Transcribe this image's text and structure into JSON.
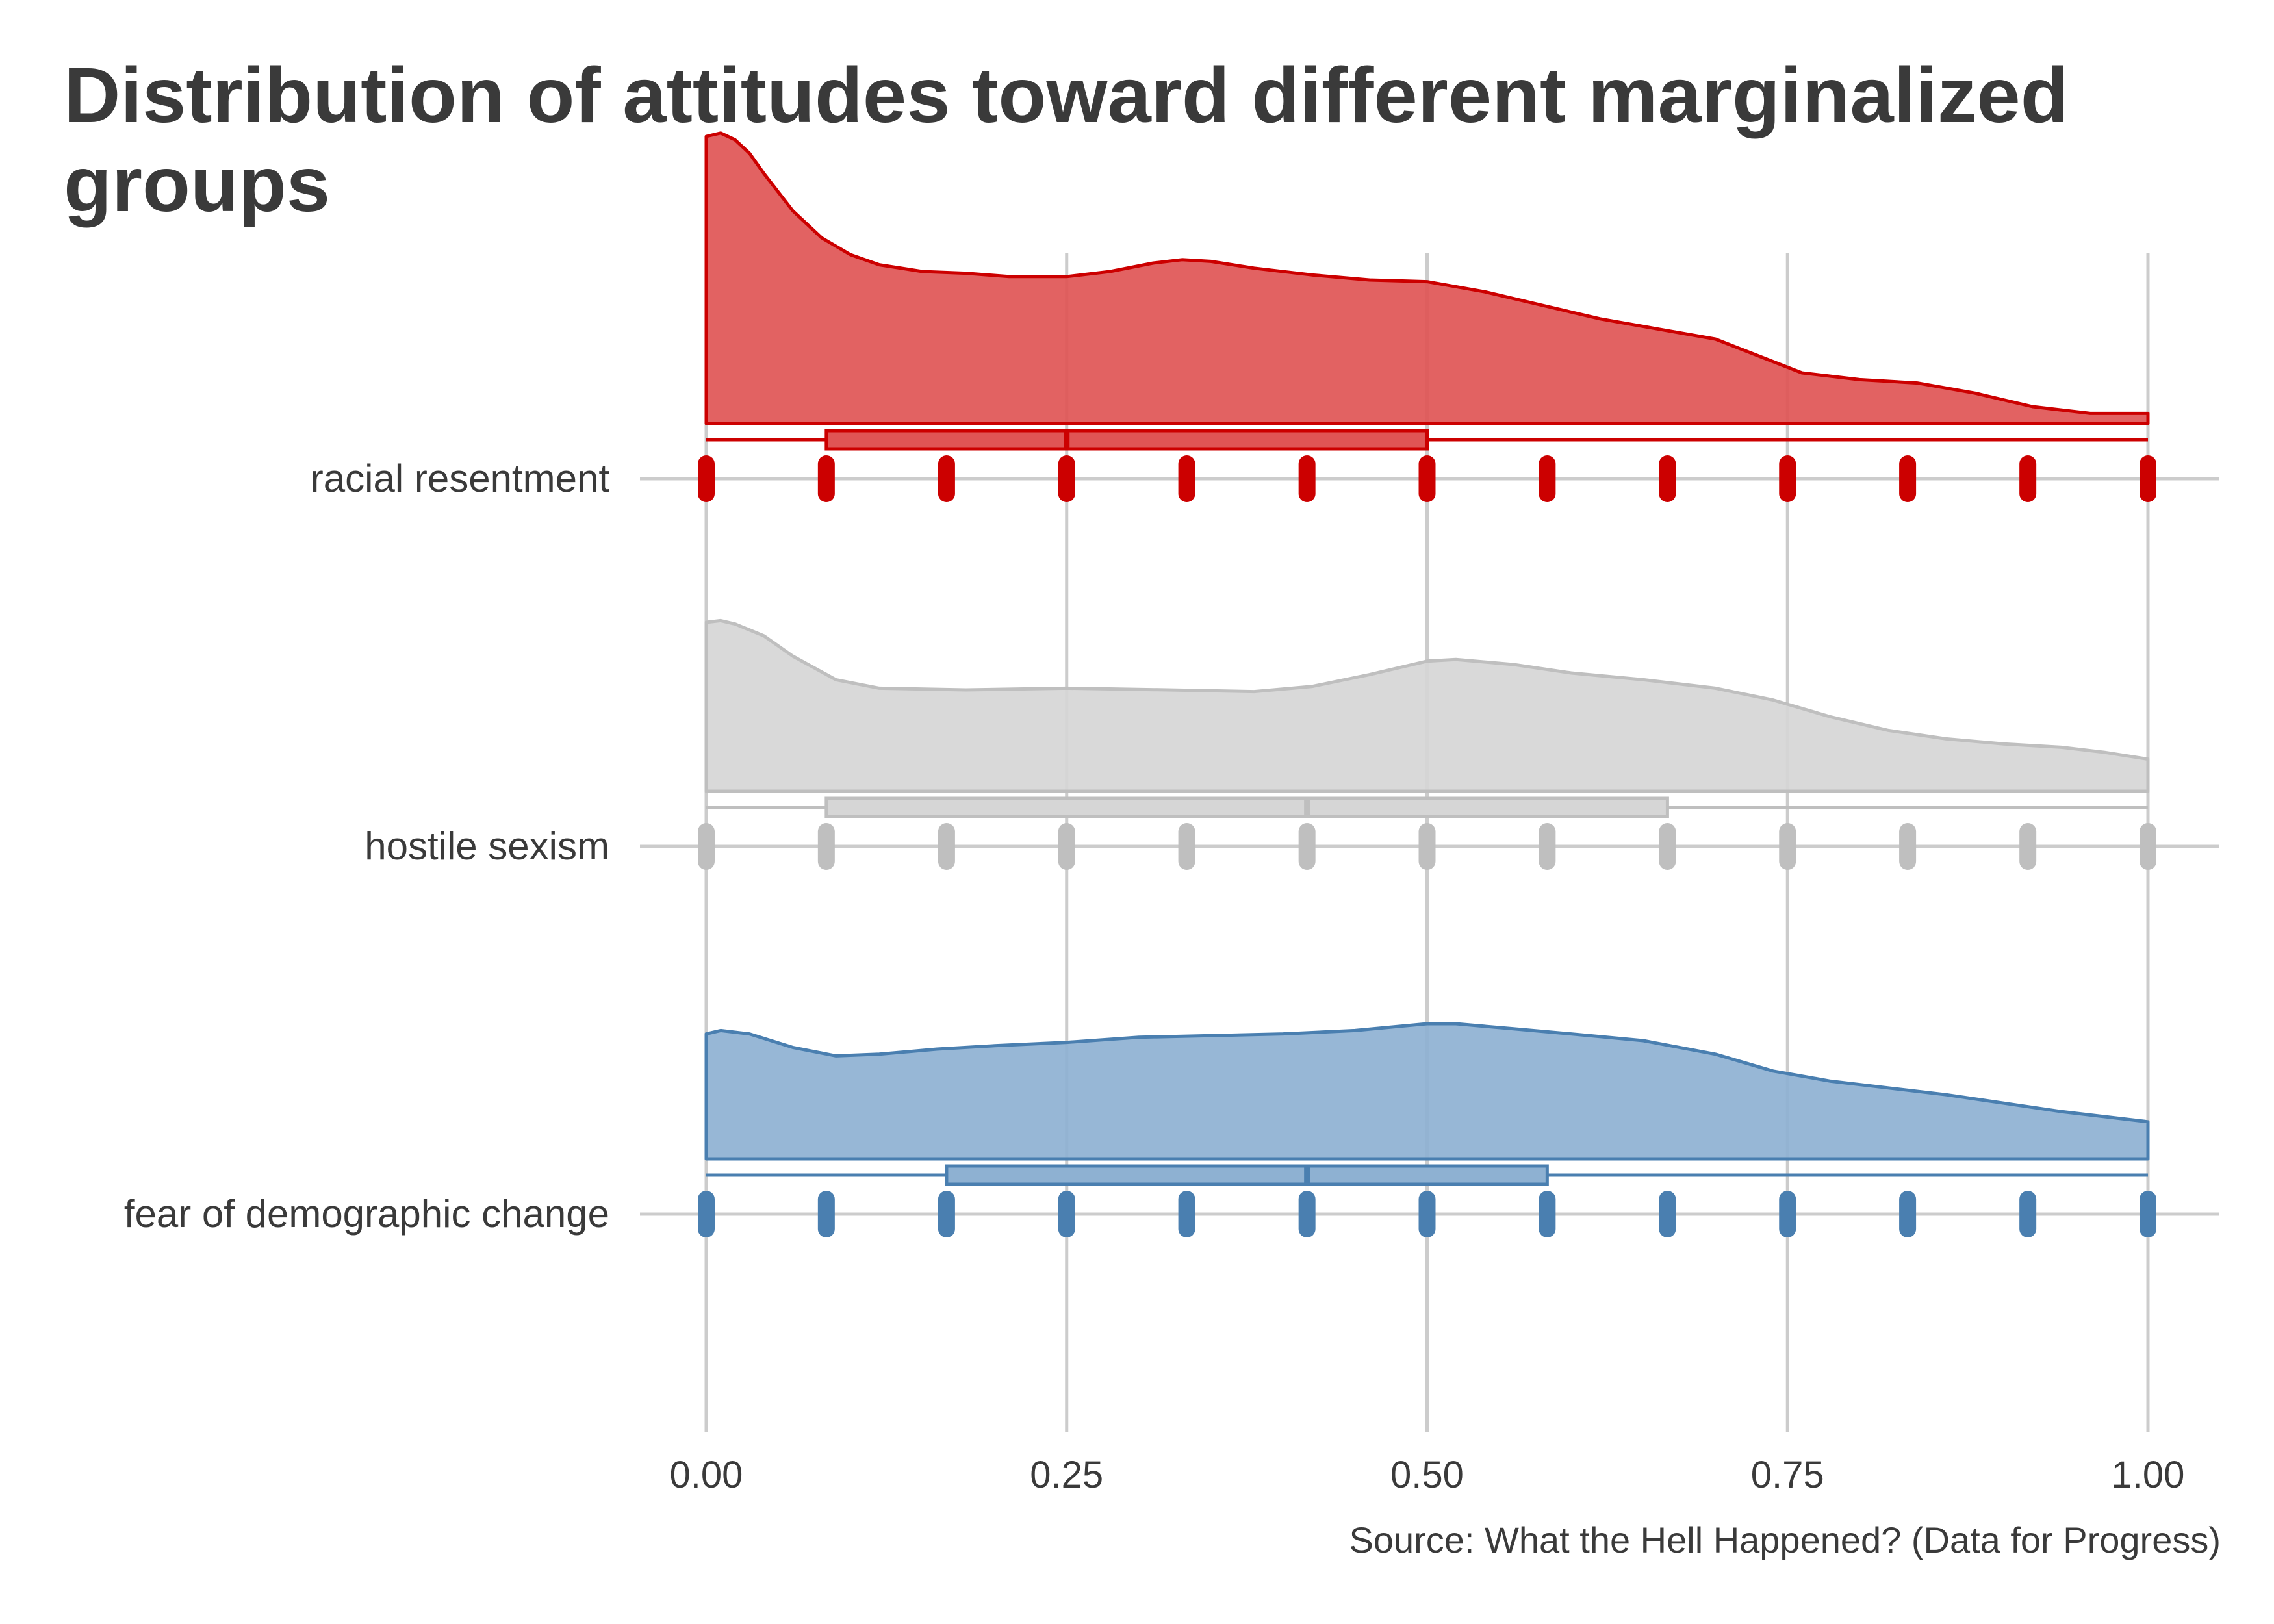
{
  "chart_data": {
    "type": "raincloud",
    "title": "Distribution of attitudes toward different marginalized groups",
    "caption": "Source: What the Hell Happened? (Data for Progress)",
    "xlim": [
      0,
      1
    ],
    "x_ticks": [
      0,
      0.25,
      0.5,
      0.75,
      1
    ],
    "x_tick_labels": [
      "0.00",
      "0.25",
      "0.50",
      "0.75",
      "1.00"
    ],
    "grid": true,
    "observed_values": [
      0,
      0.0833,
      0.1667,
      0.25,
      0.3333,
      0.4167,
      0.5,
      0.5833,
      0.6667,
      0.75,
      0.8333,
      0.9167,
      1
    ],
    "groups": [
      {
        "label": "racial resentment",
        "color": "#cc0000",
        "fill": "#e05555",
        "boxplot": {
          "min": 0,
          "q1": 0.0833,
          "median": 0.25,
          "q3": 0.5,
          "max": 1
        },
        "density": [
          [
            0,
            0.85
          ],
          [
            0.01,
            0.86
          ],
          [
            0.02,
            0.84
          ],
          [
            0.03,
            0.8
          ],
          [
            0.04,
            0.74
          ],
          [
            0.06,
            0.63
          ],
          [
            0.08,
            0.55
          ],
          [
            0.1,
            0.5
          ],
          [
            0.12,
            0.47
          ],
          [
            0.15,
            0.45
          ],
          [
            0.18,
            0.445
          ],
          [
            0.21,
            0.435
          ],
          [
            0.25,
            0.435
          ],
          [
            0.28,
            0.45
          ],
          [
            0.31,
            0.475
          ],
          [
            0.33,
            0.485
          ],
          [
            0.35,
            0.48
          ],
          [
            0.38,
            0.46
          ],
          [
            0.42,
            0.44
          ],
          [
            0.46,
            0.425
          ],
          [
            0.5,
            0.42
          ],
          [
            0.54,
            0.39
          ],
          [
            0.58,
            0.35
          ],
          [
            0.62,
            0.31
          ],
          [
            0.66,
            0.28
          ],
          [
            0.7,
            0.25
          ],
          [
            0.73,
            0.2
          ],
          [
            0.76,
            0.15
          ],
          [
            0.8,
            0.13
          ],
          [
            0.84,
            0.12
          ],
          [
            0.88,
            0.09
          ],
          [
            0.92,
            0.05
          ],
          [
            0.96,
            0.03
          ],
          [
            1,
            0.03
          ]
        ]
      },
      {
        "label": "hostile sexism",
        "color": "#bfbfbf",
        "fill": "#d6d6d6",
        "boxplot": {
          "min": 0,
          "q1": 0.0833,
          "median": 0.4167,
          "q3": 0.6667,
          "max": 1
        },
        "density": [
          [
            0,
            0.5
          ],
          [
            0.01,
            0.505
          ],
          [
            0.02,
            0.495
          ],
          [
            0.04,
            0.46
          ],
          [
            0.06,
            0.4
          ],
          [
            0.09,
            0.33
          ],
          [
            0.12,
            0.305
          ],
          [
            0.18,
            0.3
          ],
          [
            0.25,
            0.305
          ],
          [
            0.32,
            0.3
          ],
          [
            0.38,
            0.295
          ],
          [
            0.42,
            0.31
          ],
          [
            0.46,
            0.345
          ],
          [
            0.5,
            0.385
          ],
          [
            0.52,
            0.39
          ],
          [
            0.56,
            0.375
          ],
          [
            0.6,
            0.35
          ],
          [
            0.65,
            0.33
          ],
          [
            0.7,
            0.305
          ],
          [
            0.74,
            0.27
          ],
          [
            0.78,
            0.22
          ],
          [
            0.82,
            0.18
          ],
          [
            0.86,
            0.155
          ],
          [
            0.9,
            0.14
          ],
          [
            0.94,
            0.13
          ],
          [
            0.97,
            0.115
          ],
          [
            1,
            0.095
          ]
        ]
      },
      {
        "label": "fear of demographic change",
        "color": "#4a7fb0",
        "fill": "#8eb1d2",
        "boxplot": {
          "min": 0,
          "q1": 0.1667,
          "median": 0.4167,
          "q3": 0.5833,
          "max": 1
        },
        "density": [
          [
            0,
            0.37
          ],
          [
            0.01,
            0.38
          ],
          [
            0.03,
            0.37
          ],
          [
            0.06,
            0.33
          ],
          [
            0.09,
            0.305
          ],
          [
            0.12,
            0.31
          ],
          [
            0.16,
            0.325
          ],
          [
            0.2,
            0.335
          ],
          [
            0.25,
            0.345
          ],
          [
            0.3,
            0.36
          ],
          [
            0.35,
            0.365
          ],
          [
            0.4,
            0.37
          ],
          [
            0.45,
            0.38
          ],
          [
            0.5,
            0.4
          ],
          [
            0.52,
            0.4
          ],
          [
            0.56,
            0.385
          ],
          [
            0.6,
            0.37
          ],
          [
            0.65,
            0.35
          ],
          [
            0.7,
            0.31
          ],
          [
            0.74,
            0.26
          ],
          [
            0.78,
            0.23
          ],
          [
            0.82,
            0.21
          ],
          [
            0.86,
            0.19
          ],
          [
            0.9,
            0.165
          ],
          [
            0.94,
            0.14
          ],
          [
            0.97,
            0.125
          ],
          [
            1,
            0.11
          ]
        ]
      }
    ]
  }
}
